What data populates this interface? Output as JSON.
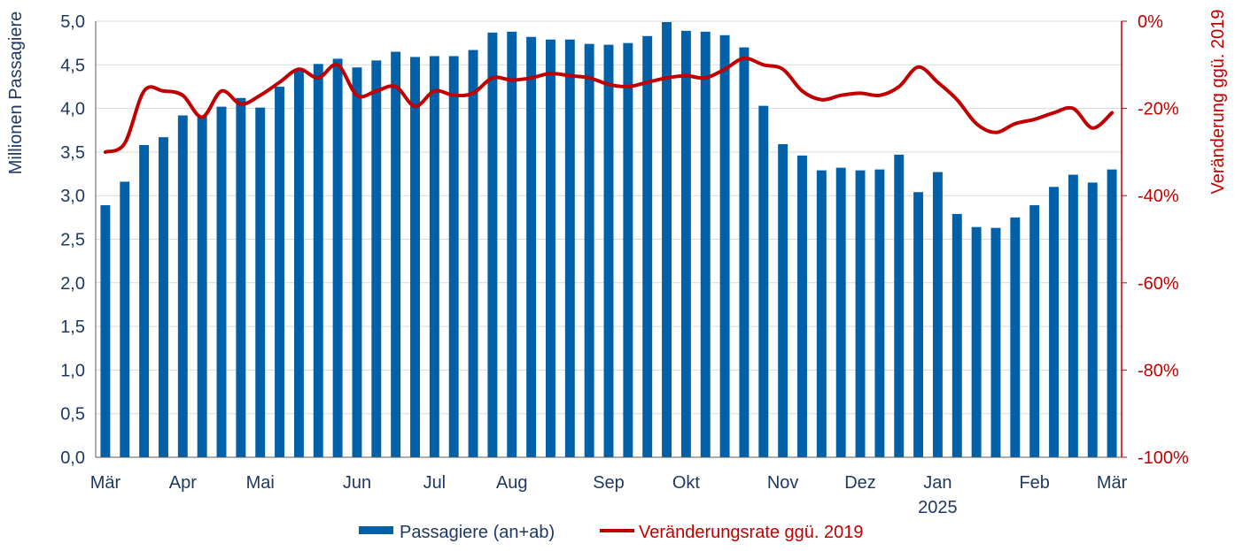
{
  "colors": {
    "bar": "#0060A8",
    "line": "#C00000",
    "left_axis_text": "#1F3864",
    "right_axis_text": "#C00000",
    "grid": "#D9D9D9",
    "axis": "#595959"
  },
  "chart_data": {
    "type": "bar",
    "left_axis": {
      "label": "Millionen Passagiere",
      "ylim": [
        0,
        5
      ],
      "ticks": [
        "0,0",
        "0,5",
        "1,0",
        "1,5",
        "2,0",
        "2,5",
        "3,0",
        "3,5",
        "4,0",
        "4,5",
        "5,0"
      ]
    },
    "right_axis": {
      "label": "Veränderung ggü. 2019",
      "ylim": [
        -100,
        0
      ],
      "ticks": [
        "-100%",
        "-80%",
        "-60%",
        "-40%",
        "-20%",
        "0%"
      ]
    },
    "x_month_labels": [
      {
        "label": "Mär",
        "index": 0
      },
      {
        "label": "Apr",
        "index": 4
      },
      {
        "label": "Mai",
        "index": 8
      },
      {
        "label": "Jun",
        "index": 13
      },
      {
        "label": "Jul",
        "index": 17
      },
      {
        "label": "Aug",
        "index": 21
      },
      {
        "label": "Sep",
        "index": 26
      },
      {
        "label": "Okt",
        "index": 30
      },
      {
        "label": "Nov",
        "index": 35
      },
      {
        "label": "Dez",
        "index": 39
      },
      {
        "label": "Jan",
        "index": 43
      },
      {
        "label": "Feb",
        "index": 48
      },
      {
        "label": "Mär",
        "index": 52
      }
    ],
    "year_label": {
      "label": "2025",
      "index": 43
    },
    "grid": true,
    "legend_position": "bottom",
    "series": [
      {
        "name": "Passagiere (an+ab)",
        "type": "bar",
        "axis": "left",
        "values": [
          2.89,
          3.16,
          3.58,
          3.67,
          3.92,
          3.91,
          4.02,
          4.12,
          4.01,
          4.25,
          4.43,
          4.51,
          4.57,
          4.47,
          4.55,
          4.65,
          4.59,
          4.6,
          4.6,
          4.67,
          4.87,
          4.88,
          4.82,
          4.79,
          4.79,
          4.74,
          4.73,
          4.75,
          4.83,
          4.99,
          4.89,
          4.88,
          4.84,
          4.7,
          4.03,
          3.59,
          3.46,
          3.29,
          3.32,
          3.29,
          3.3,
          3.47,
          3.04,
          3.27,
          2.79,
          2.64,
          2.63,
          2.75,
          2.89,
          3.1,
          3.24,
          3.15,
          3.3
        ]
      },
      {
        "name": "Veränderungsrate ggü. 2019",
        "type": "line",
        "axis": "right",
        "values": [
          -30,
          -28,
          -16,
          -16,
          -17,
          -22,
          -16,
          -19,
          -17,
          -14,
          -11,
          -13,
          -10,
          -17,
          -16,
          -15,
          -19.5,
          -16,
          -17,
          -16.5,
          -13,
          -13.5,
          -13,
          -12,
          -12.5,
          -13,
          -14.5,
          -15,
          -14,
          -13,
          -12.5,
          -13,
          -11,
          -8.5,
          -10,
          -11,
          -16,
          -18,
          -17,
          -16.5,
          -17,
          -15,
          -10.5,
          -14,
          -18,
          -23.5,
          -25.5,
          -23.5,
          -22.5,
          -21,
          -20,
          -24.5,
          -21
        ]
      }
    ]
  }
}
